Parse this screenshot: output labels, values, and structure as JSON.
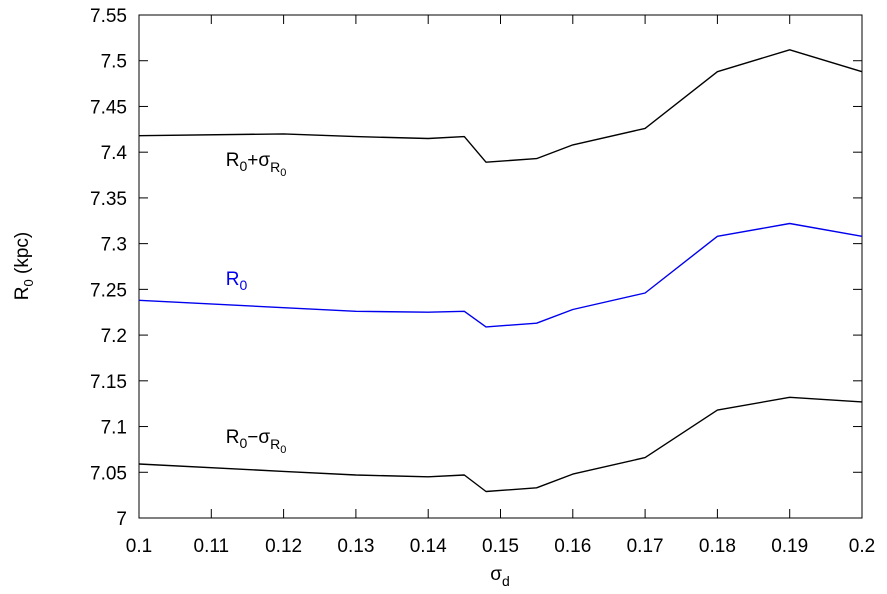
{
  "chart_data": {
    "type": "line",
    "title": "",
    "xlabel": "σ_d",
    "ylabel": "R_0 (kpc)",
    "xlim": [
      0.1,
      0.2
    ],
    "ylim": [
      7.0,
      7.55
    ],
    "x_ticks": [
      "0.1",
      "0.11",
      "0.12",
      "0.13",
      "0.14",
      "0.15",
      "0.16",
      "0.17",
      "0.18",
      "0.19",
      "0.2"
    ],
    "y_ticks": [
      "7",
      "7.05",
      "7.1",
      "7.15",
      "7.2",
      "7.25",
      "7.3",
      "7.35",
      "7.4",
      "7.45",
      "7.5",
      "7.55"
    ],
    "grid": false,
    "series": [
      {
        "name": "R0+σR0",
        "color": "#000000",
        "x": [
          0.1,
          0.12,
          0.13,
          0.14,
          0.145,
          0.148,
          0.155,
          0.16,
          0.17,
          0.18,
          0.19,
          0.2
        ],
        "y": [
          7.418,
          7.42,
          7.417,
          7.415,
          7.417,
          7.389,
          7.393,
          7.408,
          7.426,
          7.488,
          7.512,
          7.488
        ]
      },
      {
        "name": "R0",
        "color": "#0000ee",
        "x": [
          0.1,
          0.12,
          0.13,
          0.14,
          0.145,
          0.148,
          0.155,
          0.16,
          0.17,
          0.18,
          0.19,
          0.2
        ],
        "y": [
          7.238,
          7.23,
          7.226,
          7.225,
          7.226,
          7.209,
          7.213,
          7.228,
          7.246,
          7.308,
          7.322,
          7.308
        ]
      },
      {
        "name": "R0−σR0",
        "color": "#000000",
        "x": [
          0.1,
          0.12,
          0.13,
          0.14,
          0.145,
          0.148,
          0.155,
          0.16,
          0.17,
          0.18,
          0.19,
          0.2
        ],
        "y": [
          7.059,
          7.051,
          7.047,
          7.045,
          7.047,
          7.029,
          7.033,
          7.048,
          7.066,
          7.118,
          7.132,
          7.127
        ]
      }
    ],
    "annotations": [
      {
        "main": "R",
        "sub": "0",
        "op": "+",
        "sigma": "σ",
        "sigma_sub": "R",
        "sigma_sub2": "0",
        "color": "#000000",
        "x": 0.112,
        "y": 7.385
      },
      {
        "main": "R",
        "sub": "0",
        "op": "",
        "sigma": "",
        "sigma_sub": "",
        "sigma_sub2": "",
        "color": "#0000ee",
        "x": 0.112,
        "y": 7.255
      },
      {
        "main": "R",
        "sub": "0",
        "op": "−",
        "sigma": "σ",
        "sigma_sub": "R",
        "sigma_sub2": "0",
        "color": "#000000",
        "x": 0.112,
        "y": 7.082
      }
    ]
  }
}
